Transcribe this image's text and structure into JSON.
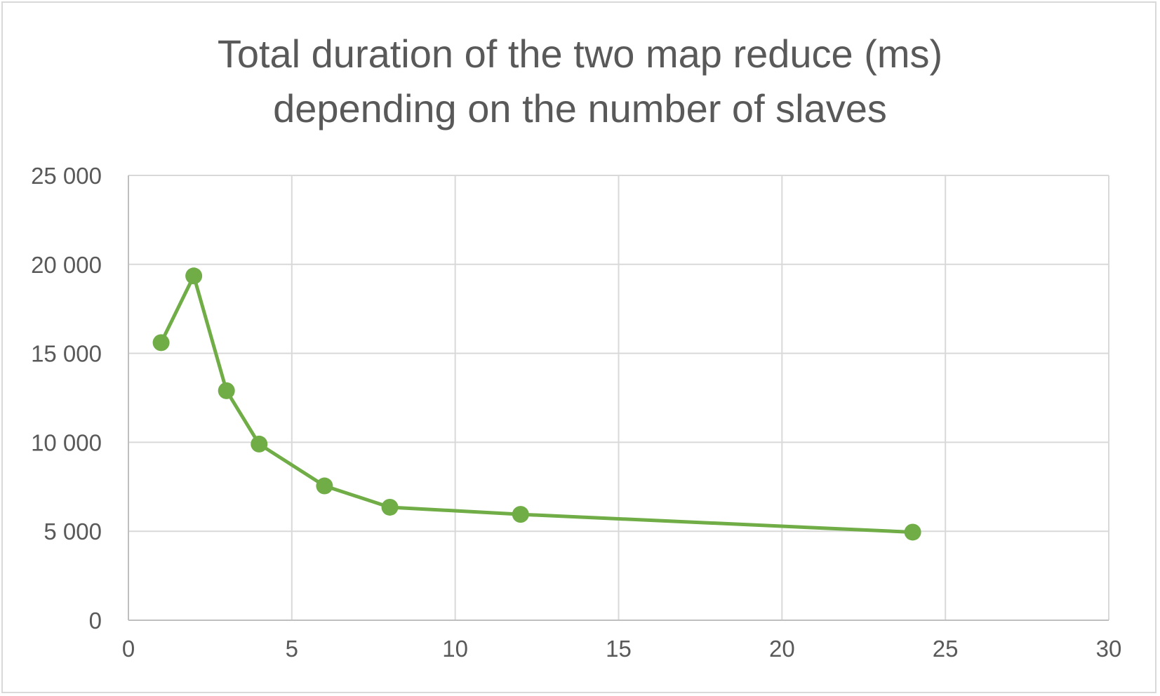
{
  "chart_data": {
    "type": "scatter",
    "title_lines": [
      "Total duration of the two map reduce (ms)",
      "depending on the number of slaves"
    ],
    "xlabel": "",
    "ylabel": "",
    "xlim": [
      0,
      30
    ],
    "ylim": [
      0,
      25000
    ],
    "x_ticks": [
      0,
      5,
      10,
      15,
      20,
      25,
      30
    ],
    "x_tick_labels": [
      "0",
      "5",
      "10",
      "15",
      "20",
      "25",
      "30"
    ],
    "y_ticks": [
      0,
      5000,
      10000,
      15000,
      20000,
      25000
    ],
    "y_tick_labels": [
      "0",
      "5 000",
      "10 000",
      "15 000",
      "20 000",
      "25 000"
    ],
    "grid": true,
    "lines": "straight lines with markers",
    "series": [
      {
        "color": "#70ad47",
        "points": [
          {
            "x": 1,
            "y": 15600
          },
          {
            "x": 2,
            "y": 19350
          },
          {
            "x": 3,
            "y": 12900
          },
          {
            "x": 4,
            "y": 9900
          },
          {
            "x": 6,
            "y": 7550
          },
          {
            "x": 8,
            "y": 6350
          },
          {
            "x": 12,
            "y": 5950
          },
          {
            "x": 24,
            "y": 4950
          }
        ]
      }
    ],
    "grid_color": "#d9d9d9",
    "axis_color": "#bfbfbf",
    "text_color": "#595959"
  }
}
